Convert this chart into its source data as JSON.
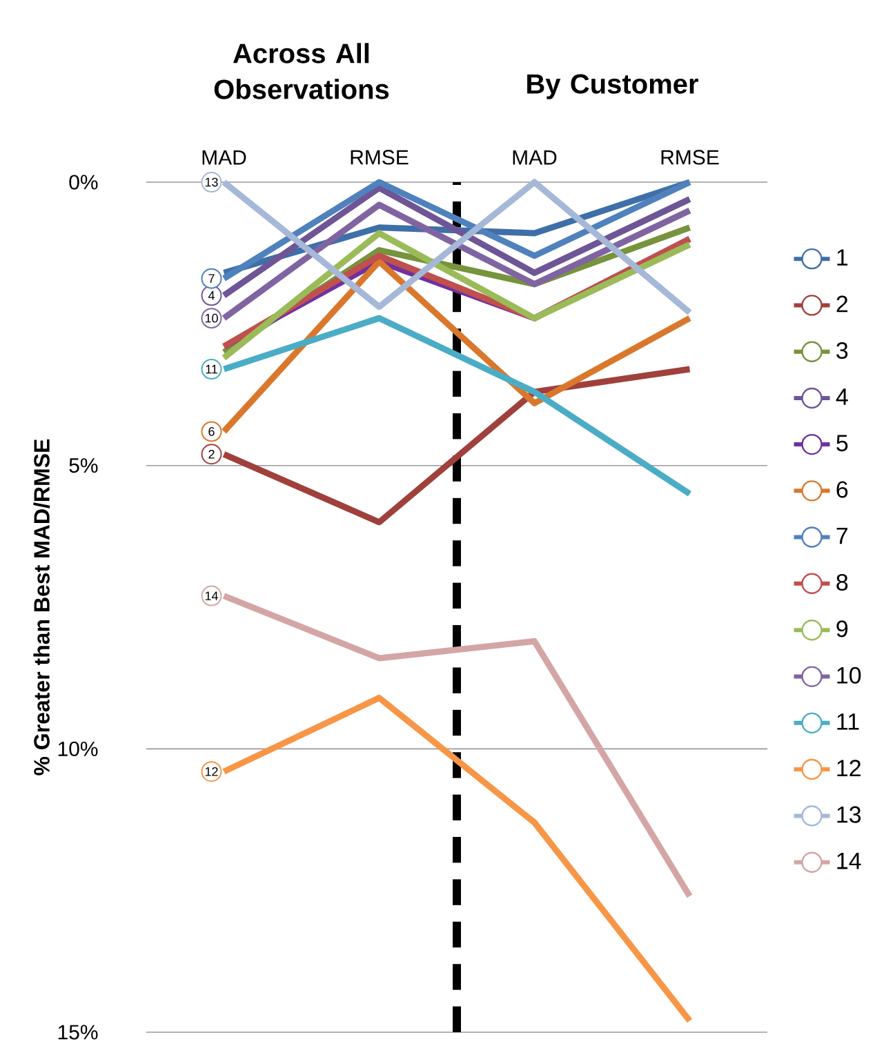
{
  "chart_data": {
    "type": "line",
    "ylabel": "% Greater than Best MAD/RMSE",
    "categories": [
      "MAD",
      "RMSE",
      "MAD",
      "RMSE"
    ],
    "annotations": [
      "Across All Observations",
      "By Customer"
    ],
    "ylim": [
      15,
      0
    ],
    "yticks": [
      {
        "value": 0,
        "label": "0%"
      },
      {
        "value": 5,
        "label": "5%"
      },
      {
        "value": 10,
        "label": "10%"
      },
      {
        "value": 15,
        "label": "15%"
      }
    ],
    "grid": "y",
    "legend": "right",
    "series": [
      {
        "name": "1",
        "color": "#3f6fa8",
        "values": [
          1.6,
          0.8,
          0.9,
          0.0
        ]
      },
      {
        "name": "2",
        "color": "#a0403c",
        "values": [
          4.8,
          6.0,
          3.7,
          3.3
        ]
      },
      {
        "name": "3",
        "color": "#77933c",
        "values": [
          3.0,
          1.2,
          1.8,
          0.8
        ]
      },
      {
        "name": "4",
        "color": "#6e5596",
        "values": [
          2.0,
          0.1,
          1.6,
          0.3
        ]
      },
      {
        "name": "5",
        "color": "#7030a0",
        "values": [
          2.9,
          1.4,
          2.4,
          1.0
        ]
      },
      {
        "name": "6",
        "color": "#d9782c",
        "values": [
          4.4,
          1.4,
          3.9,
          2.4
        ]
      },
      {
        "name": "7",
        "color": "#4f81bd",
        "values": [
          1.7,
          0.0,
          1.3,
          0.0
        ]
      },
      {
        "name": "8",
        "color": "#c0504d",
        "values": [
          2.9,
          1.3,
          2.4,
          1.0
        ]
      },
      {
        "name": "9",
        "color": "#9bbb59",
        "values": [
          3.1,
          0.9,
          2.4,
          1.1
        ]
      },
      {
        "name": "10",
        "color": "#8064a2",
        "values": [
          2.4,
          0.4,
          1.8,
          0.5
        ]
      },
      {
        "name": "11",
        "color": "#4bacc6",
        "values": [
          3.3,
          2.4,
          3.7,
          5.5
        ]
      },
      {
        "name": "12",
        "color": "#f79646",
        "values": [
          10.4,
          9.1,
          11.3,
          14.8
        ]
      },
      {
        "name": "13",
        "color": "#a5b8d8",
        "values": [
          0.0,
          2.2,
          0.0,
          2.3
        ]
      },
      {
        "name": "14",
        "color": "#d4a5a5",
        "values": [
          7.3,
          8.4,
          8.1,
          12.6
        ]
      }
    ]
  }
}
